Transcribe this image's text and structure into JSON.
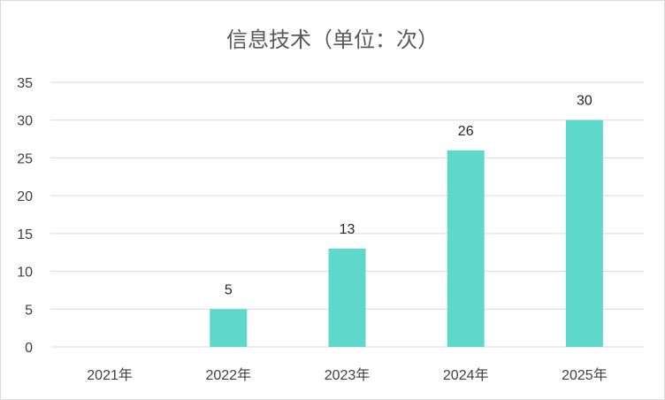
{
  "chart_data": {
    "type": "bar",
    "title": "信息技术（单位：次）",
    "categories": [
      "2021年",
      "2022年",
      "2023年",
      "2024年",
      "2025年"
    ],
    "values": [
      0,
      5,
      13,
      26,
      30
    ],
    "data_labels": [
      "",
      "5",
      "13",
      "26",
      "30"
    ],
    "ylim": [
      0,
      35
    ],
    "yticks": [
      "0",
      "5",
      "10",
      "15",
      "20",
      "25",
      "30",
      "35"
    ],
    "xlabel": "",
    "ylabel": "",
    "grid": true,
    "legend": "none",
    "bar_color": "#5ed8cb",
    "grid_color": "#d9d9d9"
  }
}
